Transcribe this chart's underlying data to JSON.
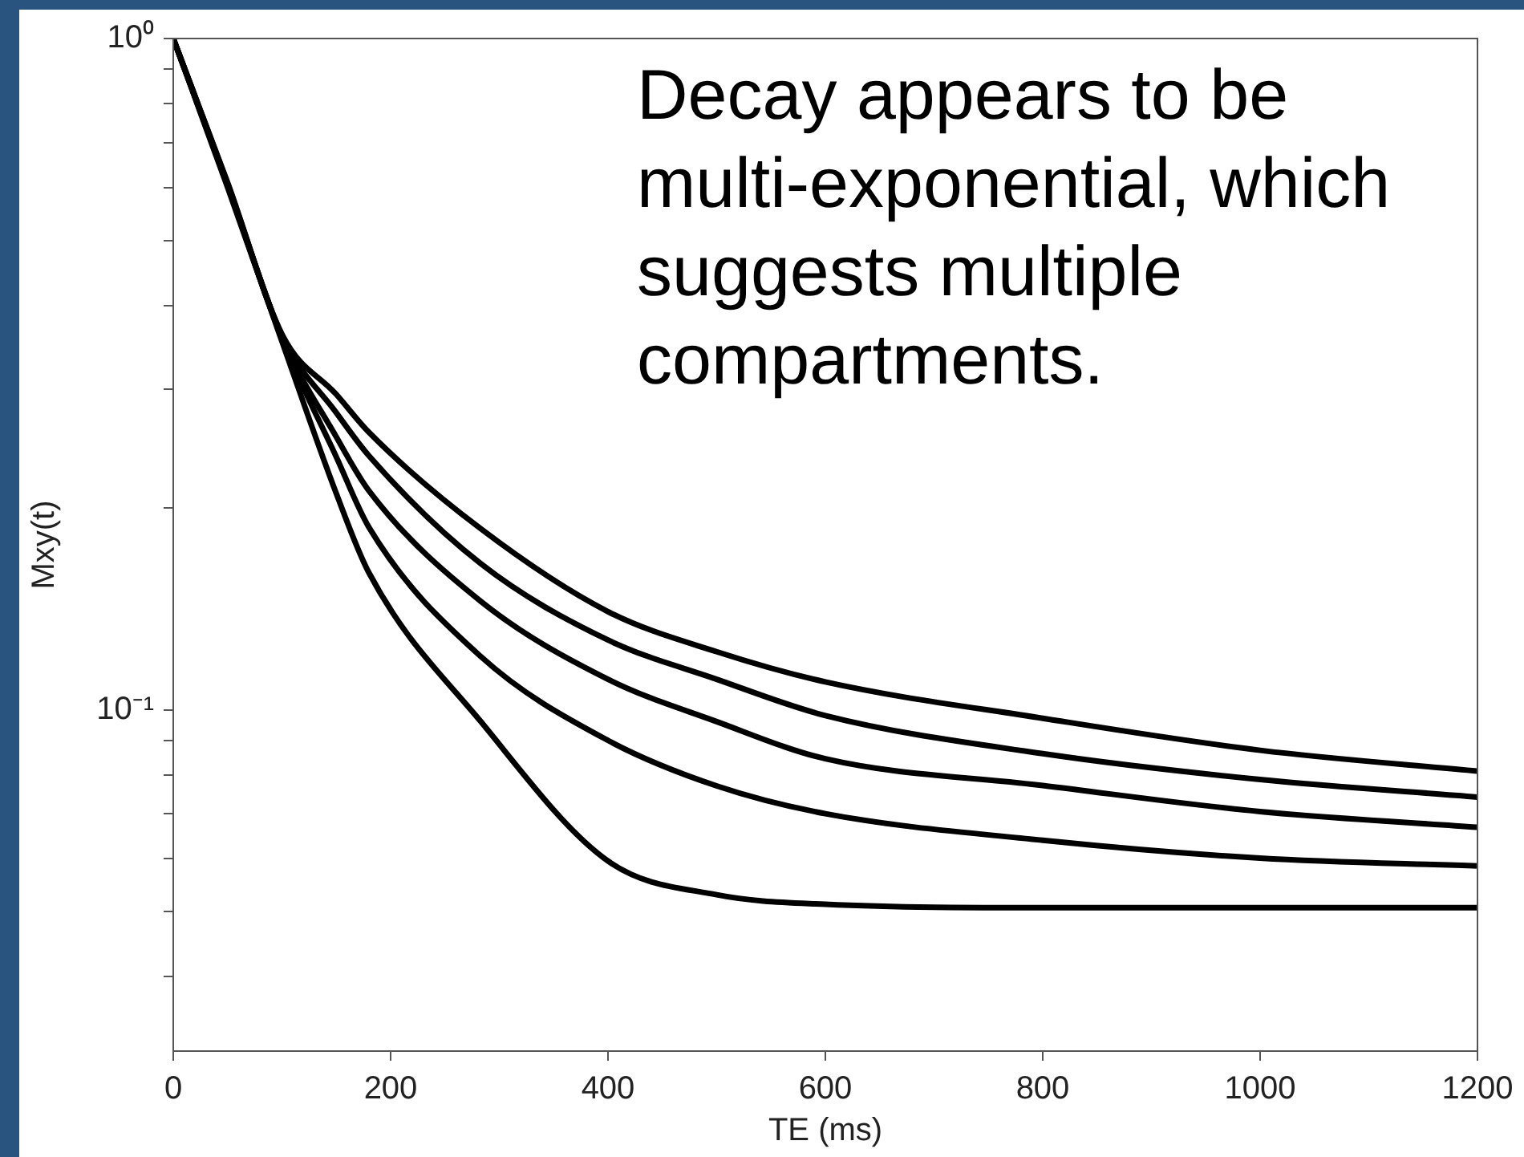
{
  "chart_data": {
    "type": "line",
    "xlabel": "TE (ms)",
    "ylabel": "Mxy(t)",
    "annotations": [
      "Decay appears to be multi-exponential, which suggests multiple compartments."
    ],
    "x": [
      0,
      50,
      101,
      150,
      180,
      283,
      400,
      500,
      600,
      800,
      1000,
      1200
    ],
    "series": [
      {
        "color": "#000000",
        "values": [
          1,
          0.61,
          0.36,
          0.295,
          0.259,
          0.186,
          0.14,
          0.122,
          0.11,
          0.0971,
          0.087,
          0.081
        ]
      },
      {
        "color": "#000000",
        "values": [
          1,
          0.608,
          0.358,
          0.277,
          0.239,
          0.165,
          0.127,
          0.111,
          0.098,
          0.086,
          0.0787,
          0.0741
        ]
      },
      {
        "color": "#000000",
        "values": [
          1,
          0.606,
          0.356,
          0.255,
          0.212,
          0.145,
          0.111,
          0.096,
          0.0845,
          0.0771,
          0.0705,
          0.0668
        ]
      },
      {
        "color": "#000000",
        "values": [
          1,
          0.604,
          0.354,
          0.238,
          0.187,
          0.12,
          0.09,
          0.077,
          0.07,
          0.0639,
          0.0601,
          0.0585
        ]
      },
      {
        "color": "#000000",
        "values": [
          1,
          0.6,
          0.35,
          0.21,
          0.16,
          0.096,
          0.0595,
          0.053,
          0.0513,
          0.0507,
          0.0507,
          0.0507
        ]
      }
    ],
    "xlim": [
      0,
      1200
    ],
    "xticks": [
      0,
      200,
      400,
      600,
      800,
      1000,
      1200
    ],
    "ylim": [
      0.031,
      1
    ],
    "yticks": [
      {
        "value": 1,
        "label": "10⁰"
      },
      {
        "value": 0.9,
        "label": null
      },
      {
        "value": 0.8,
        "label": null
      },
      {
        "value": 0.7,
        "label": null
      },
      {
        "value": 0.6,
        "label": null
      },
      {
        "value": 0.5,
        "label": null
      },
      {
        "value": 0.4,
        "label": null
      },
      {
        "value": 0.3,
        "label": null
      },
      {
        "value": 0.2,
        "label": null
      },
      {
        "value": 0.1,
        "label": "10⁻¹"
      },
      {
        "value": 0.09,
        "label": null
      },
      {
        "value": 0.08,
        "label": null
      },
      {
        "value": 0.07,
        "label": null
      },
      {
        "value": 0.06,
        "label": null
      },
      {
        "value": 0.05,
        "label": null
      },
      {
        "value": 0.04,
        "label": null
      }
    ],
    "log": "y",
    "marker": "none",
    "line_style": "solid"
  }
}
